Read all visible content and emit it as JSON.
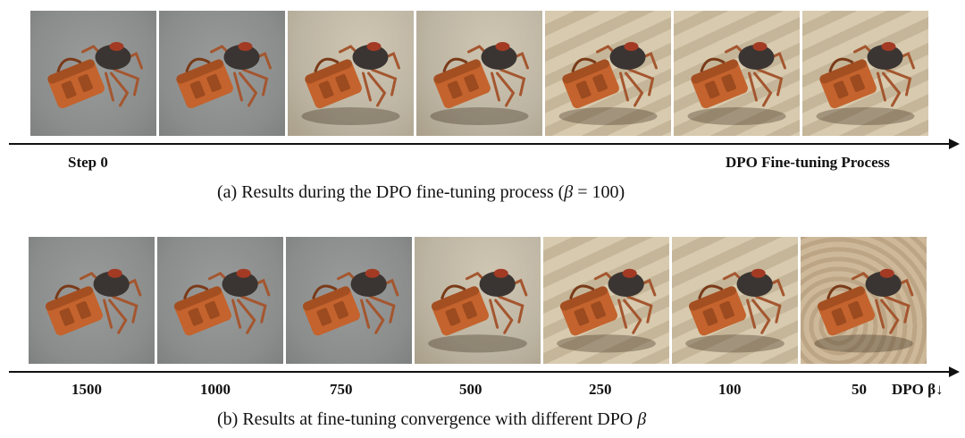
{
  "panel_a": {
    "frames": [
      {
        "scene": "gray"
      },
      {
        "scene": "gray"
      },
      {
        "scene": "light-sand"
      },
      {
        "scene": "light-sand"
      },
      {
        "scene": "sand"
      },
      {
        "scene": "sand"
      },
      {
        "scene": "sand"
      }
    ],
    "start_label": "Step 0",
    "end_label": "DPO Fine-tuning Process",
    "caption": "(a)  Results during the DPO fine-tuning process (",
    "caption_beta": "β",
    "caption_tail": " = 100)"
  },
  "panel_b": {
    "frames": [
      {
        "scene": "gray",
        "beta": "1500"
      },
      {
        "scene": "gray",
        "beta": "1000"
      },
      {
        "scene": "gray",
        "beta": "750"
      },
      {
        "scene": "light-sand",
        "beta": "500"
      },
      {
        "scene": "sand",
        "beta": "250"
      },
      {
        "scene": "sand",
        "beta": "100"
      },
      {
        "scene": "rough-sand",
        "beta": "50"
      }
    ],
    "axis_label": "DPO β↓",
    "caption": "(b)  Results at fine-tuning convergence with different DPO ",
    "caption_beta": "β"
  },
  "colors": {
    "gray": "#8b8d8c",
    "light-sand": "#bdb5a3",
    "sand": "#cfc1a7",
    "rough-sand": "#c7b395",
    "bag": "#c4632d",
    "crab_shell": "#3a3532",
    "crab_leg": "#a4562f"
  }
}
